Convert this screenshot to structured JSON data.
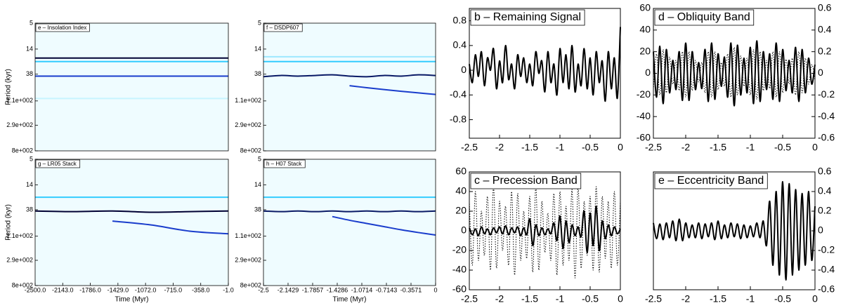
{
  "chart_data": [
    {
      "type": "spectrogram",
      "title": "e – Insolation Index",
      "ylabel": "Period (kyr)",
      "ylog": true,
      "ylim": [
        800,
        5
      ],
      "yticks": [
        5,
        14,
        38,
        {
          "value": 110,
          "label": "1.1e+002"
        },
        {
          "value": 290,
          "label": "2.9e+002"
        },
        {
          "value": 800,
          "label": "8e+002"
        }
      ],
      "xlim": [
        -2500,
        -1
      ],
      "x": [
        -2500,
        -2000,
        -1500,
        -1000,
        -500,
        -1
      ],
      "series": [
        {
          "color": "#c8f4ff",
          "values": [
            100,
            100,
            100,
            100,
            100,
            100
          ]
        },
        {
          "color": "#33ccff",
          "values": [
            23,
            23,
            23,
            23,
            23,
            23
          ]
        },
        {
          "color": "#1a3dcc",
          "values": [
            41,
            41,
            41,
            41,
            41,
            41
          ]
        },
        {
          "color": "#000033",
          "values": [
            20,
            20,
            20,
            20,
            20,
            20
          ]
        }
      ]
    },
    {
      "type": "spectrogram",
      "title": "f – DSDP607",
      "ylog": true,
      "ylim": [
        800,
        5
      ],
      "yticks": [
        5,
        14,
        38,
        {
          "value": 110,
          "label": "1.1e+002"
        },
        {
          "value": 290,
          "label": "2.9e+002"
        },
        {
          "value": 800,
          "label": "8e+002"
        }
      ],
      "xlim": [
        -2.5,
        0
      ],
      "x": [
        -2.5,
        -2.25,
        -2,
        -1.75,
        -1.5,
        -1.25,
        -1,
        -0.75,
        -0.5,
        -0.25,
        0
      ],
      "series": [
        {
          "color": "#9ee8ff",
          "values": [
            19,
            19,
            19,
            19,
            19,
            19,
            19,
            19,
            19,
            19,
            19
          ]
        },
        {
          "color": "#33ccff",
          "values": [
            23,
            23,
            23,
            23,
            23,
            23,
            23,
            23,
            23,
            23,
            23
          ]
        },
        {
          "color": "#1a3dcc",
          "values": [
            null,
            null,
            null,
            null,
            null,
            60,
            65,
            70,
            75,
            80,
            85
          ]
        },
        {
          "color": "#0a1a66",
          "values": [
            42,
            40,
            41,
            40,
            39,
            41,
            42,
            40,
            41,
            39,
            40
          ]
        }
      ]
    },
    {
      "type": "spectrogram",
      "title": "g – LR05 Stack",
      "ylabel": "Period (kyr)",
      "xlabel": "Time (Myr)",
      "ylog": true,
      "ylim": [
        800,
        5
      ],
      "yticks": [
        5,
        14,
        38,
        {
          "value": 110,
          "label": "1.1e+002"
        },
        {
          "value": 290,
          "label": "2.9e+002"
        },
        {
          "value": 800,
          "label": "8e+002"
        }
      ],
      "xlim": [
        -2500,
        -1
      ],
      "xticks": [
        {
          "value": -2500,
          "label": "-2500.0"
        },
        {
          "value": -2143,
          "label": "-2143.0"
        },
        {
          "value": -1786,
          "label": "-1786.0"
        },
        {
          "value": -1429,
          "label": "-1429.0"
        },
        {
          "value": -1072,
          "label": "-1072.0"
        },
        {
          "value": -715,
          "label": "-715.0"
        },
        {
          "value": -358,
          "label": "-358.0"
        },
        {
          "value": -1,
          "label": "-1.0"
        }
      ],
      "x": [
        -2500,
        -2000,
        -1500,
        -1000,
        -500,
        -1
      ],
      "series": [
        {
          "color": "#33ccff",
          "values": [
            23,
            23,
            23,
            23,
            23,
            23
          ]
        },
        {
          "color": "#1a3dcc",
          "values": [
            null,
            null,
            60,
            70,
            90,
            100
          ]
        },
        {
          "color": "#000033",
          "values": [
            40,
            41,
            40,
            42,
            41,
            40
          ]
        }
      ]
    },
    {
      "type": "spectrogram",
      "title": "h – H07 Stack",
      "xlabel": "Time (Myr)",
      "ylog": true,
      "ylim": [
        800,
        5
      ],
      "yticks": [
        5,
        14,
        38,
        {
          "value": 110,
          "label": "1.1e+002"
        },
        {
          "value": 290,
          "label": "2.9e+002"
        },
        {
          "value": 800,
          "label": "8e+002"
        }
      ],
      "xlim": [
        -2.5,
        0
      ],
      "xticks": [
        -2.5,
        -2.1429,
        -1.7857,
        -1.4286,
        -1.0714,
        -0.7143,
        -0.3571,
        0
      ],
      "x": [
        -2.5,
        -2.25,
        -2,
        -1.75,
        -1.5,
        -1.25,
        -1,
        -0.75,
        -0.5,
        -0.25,
        0
      ],
      "series": [
        {
          "color": "#33ccff",
          "values": [
            23,
            23,
            23,
            23,
            23,
            23,
            23,
            23,
            23,
            23,
            23
          ]
        },
        {
          "color": "#1a3dcc",
          "values": [
            null,
            null,
            null,
            null,
            50,
            58,
            66,
            75,
            85,
            95,
            105
          ]
        },
        {
          "color": "#0a1a66",
          "values": [
            40,
            41,
            40,
            41,
            40,
            41,
            40,
            41,
            40,
            41,
            40
          ]
        }
      ]
    },
    {
      "type": "line",
      "title": "b – Remaining Signal",
      "xlim": [
        -2.5,
        0
      ],
      "xticks": [
        -2.5,
        -2,
        -1.5,
        -1,
        -0.5,
        0
      ],
      "ylim": [
        -1.1,
        1.0
      ],
      "yticks": [
        -0.8,
        -0.4,
        0,
        0.4,
        0.8
      ],
      "x": [
        -2.5,
        -2.45,
        -2.4,
        -2.35,
        -2.3,
        -2.25,
        -2.2,
        -2.15,
        -2.1,
        -2.05,
        -2,
        -1.95,
        -1.9,
        -1.85,
        -1.8,
        -1.75,
        -1.7,
        -1.65,
        -1.6,
        -1.55,
        -1.5,
        -1.45,
        -1.4,
        -1.35,
        -1.3,
        -1.25,
        -1.2,
        -1.15,
        -1.1,
        -1.05,
        -1,
        -0.95,
        -0.9,
        -0.85,
        -0.8,
        -0.75,
        -0.7,
        -0.65,
        -0.6,
        -0.55,
        -0.5,
        -0.45,
        -0.4,
        -0.35,
        -0.3,
        -0.25,
        -0.2,
        -0.15,
        -0.1,
        -0.05,
        0
      ],
      "series": [
        {
          "color": "#000000",
          "style": "solid",
          "values": [
            0.1,
            -0.2,
            0.25,
            -0.1,
            0.3,
            -0.25,
            0.2,
            0,
            0.35,
            -0.3,
            0.15,
            -0.2,
            0.4,
            -0.15,
            0.1,
            -0.3,
            0.25,
            -0.1,
            0.2,
            -0.2,
            0.1,
            -0.25,
            0.3,
            -0.05,
            0.15,
            -0.35,
            0.3,
            -0.2,
            0.1,
            -0.4,
            0.35,
            -0.2,
            0.25,
            -0.3,
            0.4,
            -0.35,
            0.1,
            -0.25,
            0.35,
            -0.3,
            0.2,
            -0.4,
            0.3,
            -0.2,
            0.15,
            -0.5,
            0.3,
            -0.3,
            0.2,
            -0.45,
            0.7
          ]
        }
      ]
    },
    {
      "type": "line",
      "title": "d – Obliquity Band",
      "xlim": [
        -2.5,
        0
      ],
      "xticks": [
        -2.5,
        -2,
        -1.5,
        -1,
        -0.5,
        0
      ],
      "ylim": [
        -60,
        60
      ],
      "yticks": [
        -60,
        -40,
        -20,
        0,
        20,
        40,
        60
      ],
      "y2lim": [
        -0.6,
        0.6
      ],
      "y2ticks": [
        -0.6,
        -0.4,
        -0.2,
        0,
        0.2,
        0.4,
        0.6
      ],
      "x": [
        -2.5,
        -2.45,
        -2.4,
        -2.35,
        -2.3,
        -2.25,
        -2.2,
        -2.15,
        -2.1,
        -2.05,
        -2,
        -1.95,
        -1.9,
        -1.85,
        -1.8,
        -1.75,
        -1.7,
        -1.65,
        -1.6,
        -1.55,
        -1.5,
        -1.45,
        -1.4,
        -1.35,
        -1.3,
        -1.25,
        -1.2,
        -1.15,
        -1.1,
        -1.05,
        -1,
        -0.95,
        -0.9,
        -0.85,
        -0.8,
        -0.75,
        -0.7,
        -0.65,
        -0.6,
        -0.55,
        -0.5,
        -0.45,
        -0.4,
        -0.35,
        -0.3,
        -0.25,
        -0.2,
        -0.15,
        -0.1,
        -0.05,
        0
      ],
      "series": [
        {
          "color": "#000000",
          "style": "dotted",
          "axis": "y2",
          "values": [
            -0.15,
            0.18,
            -0.2,
            0.22,
            -0.18,
            0.15,
            -0.1,
            0.12,
            -0.16,
            0.2,
            -0.22,
            0.2,
            -0.16,
            0.12,
            -0.08,
            0.1,
            -0.18,
            0.2,
            -0.22,
            0.2,
            -0.15,
            0.1,
            -0.12,
            0.18,
            -0.22,
            0.24,
            -0.2,
            0.16,
            -0.12,
            0.14,
            -0.2,
            0.22,
            -0.24,
            0.2,
            -0.16,
            0.12,
            -0.14,
            0.2,
            -0.22,
            0.2,
            -0.18,
            0.13,
            -0.1,
            0.14,
            -0.2,
            0.2,
            -0.18,
            0.14,
            -0.1,
            0.08,
            -0.06
          ]
        },
        {
          "color": "#000000",
          "style": "solid",
          "values": [
            20,
            -22,
            25,
            -28,
            22,
            -18,
            12,
            -15,
            20,
            -25,
            28,
            -25,
            20,
            -15,
            10,
            -14,
            22,
            -26,
            28,
            -24,
            18,
            -12,
            15,
            -22,
            28,
            -30,
            26,
            -20,
            14,
            -18,
            24,
            -28,
            30,
            -26,
            20,
            -15,
            18,
            -24,
            28,
            -26,
            22,
            -16,
            12,
            -18,
            24,
            -26,
            22,
            -18,
            14,
            -10,
            8
          ]
        }
      ]
    },
    {
      "type": "line",
      "title": "c – Precession Band",
      "xlim": [
        -2.5,
        0
      ],
      "xticks": [
        -2.5,
        -2,
        -1.5,
        -1,
        -0.5,
        0
      ],
      "ylim": [
        -60,
        60
      ],
      "yticks": [
        -60,
        -40,
        -20,
        0,
        20,
        40,
        60
      ],
      "x": [
        -2.5,
        -2.45,
        -2.4,
        -2.35,
        -2.3,
        -2.25,
        -2.2,
        -2.15,
        -2.1,
        -2.05,
        -2,
        -1.95,
        -1.9,
        -1.85,
        -1.8,
        -1.75,
        -1.7,
        -1.65,
        -1.6,
        -1.55,
        -1.5,
        -1.45,
        -1.4,
        -1.35,
        -1.3,
        -1.25,
        -1.2,
        -1.15,
        -1.1,
        -1.05,
        -1,
        -0.95,
        -0.9,
        -0.85,
        -0.8,
        -0.75,
        -0.7,
        -0.65,
        -0.6,
        -0.55,
        -0.5,
        -0.45,
        -0.4,
        -0.35,
        -0.3,
        -0.25,
        -0.2,
        -0.15,
        -0.1,
        -0.05,
        0
      ],
      "series": [
        {
          "color": "#000000",
          "style": "dotted",
          "values": [
            30,
            -35,
            40,
            -30,
            20,
            -25,
            35,
            -40,
            45,
            -38,
            30,
            -20,
            25,
            -35,
            40,
            -45,
            38,
            -30,
            20,
            -28,
            35,
            -42,
            45,
            -40,
            30,
            -22,
            18,
            -30,
            38,
            -45,
            40,
            -35,
            25,
            -30,
            42,
            -48,
            45,
            -38,
            30,
            -25,
            35,
            -40,
            45,
            -42,
            35,
            -28,
            30,
            -38,
            40,
            -35,
            30
          ]
        },
        {
          "color": "#000000",
          "style": "solid",
          "values": [
            3,
            -4,
            2,
            -5,
            4,
            -3,
            2,
            -4,
            3,
            -2,
            4,
            -3,
            5,
            -4,
            3,
            -2,
            4,
            -5,
            3,
            -4,
            12,
            -15,
            6,
            -5,
            3,
            -4,
            2,
            -3,
            8,
            -10,
            15,
            -18,
            10,
            -12,
            6,
            -5,
            4,
            -6,
            20,
            -22,
            18,
            -15,
            25,
            -20,
            10,
            -8,
            6,
            -5,
            4,
            -3,
            2
          ]
        }
      ]
    },
    {
      "type": "line",
      "title": "e – Eccentricity Band",
      "yaxis": "right",
      "xlim": [
        -2.5,
        0
      ],
      "xticks": [
        -2.5,
        -2,
        -1.5,
        -1,
        -0.5,
        0
      ],
      "ylim": [
        -0.6,
        0.6
      ],
      "yticks": [
        -0.6,
        -0.4,
        -0.2,
        0,
        0.2,
        0.4,
        0.6
      ],
      "x": [
        -2.5,
        -2.45,
        -2.4,
        -2.35,
        -2.3,
        -2.25,
        -2.2,
        -2.15,
        -2.1,
        -2.05,
        -2,
        -1.95,
        -1.9,
        -1.85,
        -1.8,
        -1.75,
        -1.7,
        -1.65,
        -1.6,
        -1.55,
        -1.5,
        -1.45,
        -1.4,
        -1.35,
        -1.3,
        -1.25,
        -1.2,
        -1.15,
        -1.1,
        -1.05,
        -1,
        -0.95,
        -0.9,
        -0.85,
        -0.8,
        -0.75,
        -0.7,
        -0.65,
        -0.6,
        -0.55,
        -0.5,
        -0.45,
        -0.4,
        -0.35,
        -0.3,
        -0.25,
        -0.2,
        -0.15,
        -0.1,
        -0.05,
        0
      ],
      "series": [
        {
          "color": "#000000",
          "style": "solid",
          "values": [
            0.08,
            -0.08,
            0.07,
            -0.09,
            0.08,
            -0.07,
            0.1,
            -0.1,
            0.12,
            -0.1,
            0.08,
            -0.07,
            0.06,
            -0.07,
            0.08,
            -0.08,
            0.07,
            -0.06,
            0.08,
            -0.09,
            0.1,
            -0.08,
            0.06,
            -0.07,
            0.08,
            -0.06,
            0.07,
            -0.08,
            0.06,
            -0.07,
            0.05,
            -0.06,
            0.08,
            -0.07,
            0.1,
            -0.15,
            0.3,
            -0.35,
            0.4,
            -0.45,
            0.5,
            -0.5,
            0.48,
            -0.45,
            0.42,
            -0.4,
            0.38,
            -0.35,
            0.4,
            -0.3,
            0.25
          ]
        }
      ]
    }
  ]
}
